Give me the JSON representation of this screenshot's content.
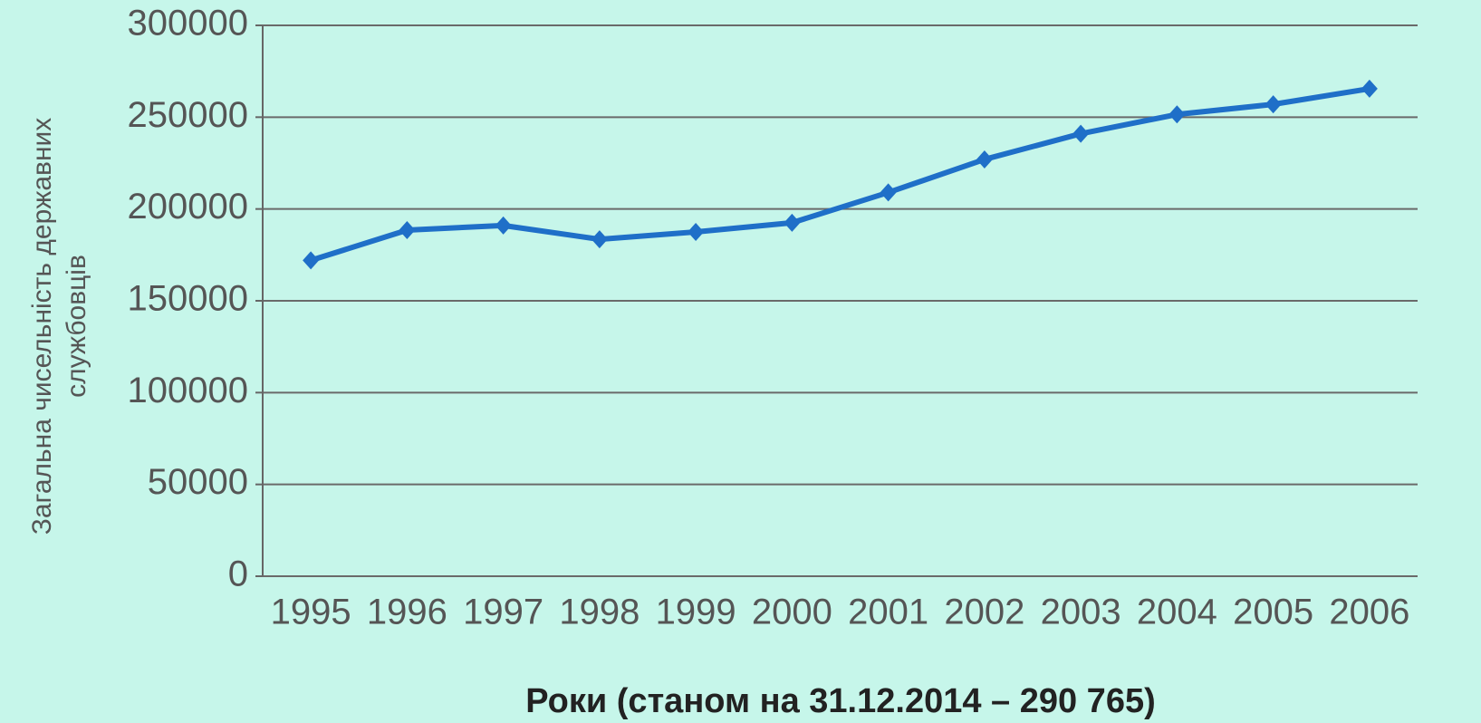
{
  "chart_data": {
    "type": "line",
    "ylabel": [
      "Загальна чисельність державних",
      "службовців"
    ],
    "xlabel": "Роки (станом на 31.12.2014 – 290 765)",
    "categories": [
      "1995",
      "1996",
      "1997",
      "1998",
      "1999",
      "2000",
      "2001",
      "2002",
      "2003",
      "2004",
      "2005",
      "2006"
    ],
    "values": [
      172000,
      188500,
      191000,
      183500,
      187500,
      192500,
      209000,
      227000,
      241000,
      251500,
      257000,
      265500
    ],
    "color": "#1f6fc8",
    "ylim": [
      0,
      300000
    ],
    "yticks": [
      0,
      50000,
      100000,
      150000,
      200000,
      250000,
      300000
    ],
    "grid": true
  }
}
